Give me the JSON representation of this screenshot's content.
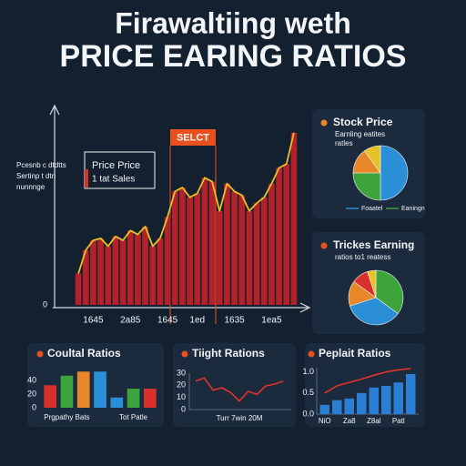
{
  "title": {
    "line1": "Firawaltiing weth",
    "line2": "PRICE EARING RATIOS"
  },
  "chart_data": [
    {
      "type": "bar",
      "y_label": [
        "Pcesnb c dtdtts",
        "Sertinp t dtn",
        "nunnnge"
      ],
      "annotation_box": [
        "Price Price",
        "1 tat Sales"
      ],
      "highlight": "SELCT",
      "categories": [
        null,
        null,
        "1645",
        null,
        null,
        null,
        null,
        "2a85",
        null,
        null,
        null,
        null,
        "1645",
        null,
        null,
        null,
        "1ed",
        null,
        null,
        null,
        null,
        "1635",
        null,
        null,
        null,
        null,
        "1ea5",
        null,
        null,
        null
      ],
      "values": [
        16,
        28,
        33,
        34,
        30,
        35,
        33,
        38,
        36,
        40,
        30,
        34,
        45,
        58,
        60,
        55,
        57,
        65,
        63,
        48,
        62,
        58,
        56,
        48,
        52,
        55,
        62,
        70,
        72,
        88
      ],
      "color": "#b3222a",
      "outline_color": "#e6c229",
      "ylim": [
        0,
        100
      ],
      "yticks": [
        0
      ]
    },
    {
      "type": "pie",
      "title": "Stock Price",
      "subtitle": [
        "Earnling eatites",
        "ratles"
      ],
      "categories": [
        "Foaatel",
        "Eaningn",
        null,
        null
      ],
      "values": [
        50,
        25,
        15,
        10
      ],
      "colors": [
        "#2a8fd6",
        "#3da33b",
        "#e8862a",
        "#e6c229"
      ]
    },
    {
      "type": "pie",
      "title": "Trickes Earning",
      "subtitle": [
        "ratios to1 reatess"
      ],
      "values": [
        35,
        35,
        15,
        10,
        5
      ],
      "colors": [
        "#3da33b",
        "#2a8fd6",
        "#e8862a",
        "#d8312b",
        "#e6c229"
      ]
    },
    {
      "type": "bar",
      "title": "Coultal Ratios",
      "categories": [
        null,
        "Prgpathy Bats",
        null,
        null,
        null,
        "Tot Patle",
        null
      ],
      "values": [
        33,
        47,
        53,
        53,
        15,
        28,
        28
      ],
      "colors": [
        "#d8312b",
        "#3da33b",
        "#e8862a",
        "#2a8fd6",
        "#2a8fd6",
        "#3da33b",
        "#d8312b"
      ],
      "ylim": [
        0,
        60
      ],
      "yticks": [
        0,
        20,
        40
      ]
    },
    {
      "type": "line",
      "title": "Tiight Rations",
      "x_label": "Turr 7win 20M",
      "values": [
        23.5,
        26,
        16,
        18,
        14,
        7,
        15,
        12.5,
        19.5,
        21,
        23.5
      ],
      "color": "#e0342b",
      "ylim": [
        0,
        30
      ],
      "yticks": [
        0,
        10,
        20,
        30
      ]
    },
    {
      "type": "bar",
      "title": "Peplait Ratios",
      "categories": [
        "NiO",
        null,
        "Za8",
        null,
        "Z8al",
        null,
        "Patl",
        null
      ],
      "series": [
        {
          "type": "bar",
          "color": "#2a7fd4",
          "values": [
            0.22,
            0.33,
            0.37,
            0.5,
            0.63,
            0.67,
            0.75,
            0.95
          ]
        },
        {
          "type": "line",
          "color": "#e0342b",
          "values": [
            0.5,
            0.67,
            0.75,
            0.83,
            0.92,
            1.0,
            1.05,
            1.08
          ]
        }
      ],
      "ylim": [
        0,
        1.1
      ],
      "yticks": [
        {
          "value": 0,
          "label": "0.0"
        },
        0.5,
        {
          "value": 1,
          "label": "1.0"
        }
      ]
    }
  ]
}
